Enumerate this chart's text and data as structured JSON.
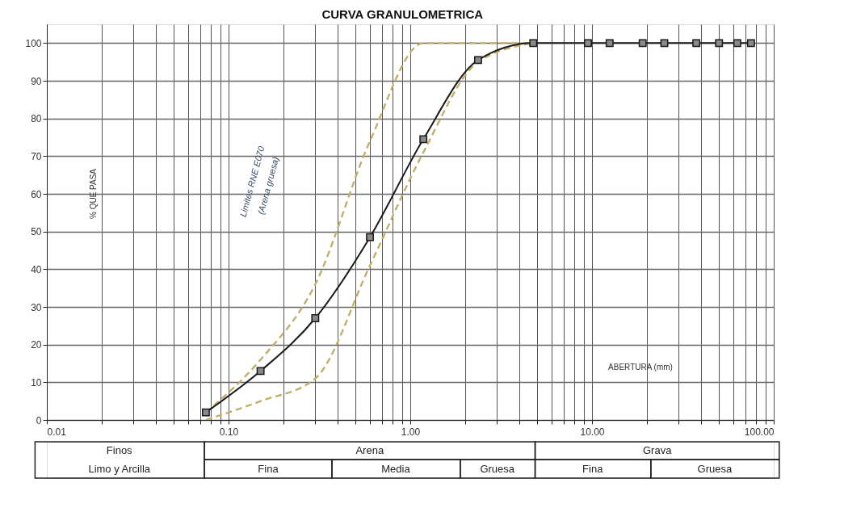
{
  "chart_data": {
    "type": "line",
    "title": "CURVA GRANULOMETRICA",
    "xlabel": "ABERTURA (mm)",
    "ylabel": "% QUE PASA",
    "log": "x",
    "grid": true,
    "xlim": [
      0.01,
      100
    ],
    "ylim": [
      0,
      105
    ],
    "xticks": [
      {
        "value": 0.01,
        "label": "0.01"
      },
      {
        "value": 0.02,
        "label": null
      },
      {
        "value": 0.03,
        "label": null
      },
      {
        "value": 0.04,
        "label": null
      },
      {
        "value": 0.05,
        "label": null
      },
      {
        "value": 0.06,
        "label": null
      },
      {
        "value": 0.07,
        "label": null
      },
      {
        "value": 0.08,
        "label": null
      },
      {
        "value": 0.09,
        "label": null
      },
      {
        "value": 0.1,
        "label": "0.10"
      },
      {
        "value": 0.2,
        "label": null
      },
      {
        "value": 0.3,
        "label": null
      },
      {
        "value": 0.4,
        "label": null
      },
      {
        "value": 0.5,
        "label": null
      },
      {
        "value": 0.6,
        "label": null
      },
      {
        "value": 0.7,
        "label": null
      },
      {
        "value": 0.8,
        "label": null
      },
      {
        "value": 0.9,
        "label": null
      },
      {
        "value": 1,
        "label": "1.00"
      },
      {
        "value": 2,
        "label": null
      },
      {
        "value": 3,
        "label": null
      },
      {
        "value": 4,
        "label": null
      },
      {
        "value": 5,
        "label": null
      },
      {
        "value": 6,
        "label": null
      },
      {
        "value": 7,
        "label": null
      },
      {
        "value": 8,
        "label": null
      },
      {
        "value": 9,
        "label": null
      },
      {
        "value": 10,
        "label": "10.00"
      },
      {
        "value": 20,
        "label": null
      },
      {
        "value": 30,
        "label": null
      },
      {
        "value": 40,
        "label": null
      },
      {
        "value": 50,
        "label": null
      },
      {
        "value": 60,
        "label": null
      },
      {
        "value": 70,
        "label": null
      },
      {
        "value": 80,
        "label": null
      },
      {
        "value": 90,
        "label": null
      },
      {
        "value": 100,
        "label": "100.00"
      }
    ],
    "yticks": [
      0,
      10,
      20,
      30,
      40,
      50,
      60,
      70,
      80,
      90,
      100
    ],
    "series": [
      {
        "color": "#c2b06a",
        "line_style": "dashed",
        "marker": "none",
        "x": [
          0.075,
          0.15,
          0.3,
          0.6,
          1.18,
          2.36,
          4.75
        ],
        "values": [
          2,
          16,
          36,
          74,
          100,
          100,
          100
        ]
      },
      {
        "color": "#c2b06a",
        "line_style": "dashed",
        "marker": "none",
        "x": [
          0.075,
          0.15,
          0.3,
          0.6,
          1.18,
          2.36,
          4.75
        ],
        "values": [
          0,
          5,
          11,
          41,
          71,
          95,
          100
        ]
      },
      {
        "color": "#1a1a1a",
        "line_style": "solid",
        "marker": "square",
        "x": [
          0.075,
          0.15,
          0.3,
          0.6,
          1.18,
          2.36,
          4.75,
          9.5,
          12.5,
          19,
          25,
          37.5,
          50,
          63,
          75
        ],
        "values": [
          2,
          13,
          27,
          48.5,
          74.5,
          95.5,
          100,
          100,
          100,
          100,
          100,
          100,
          100,
          100,
          100
        ]
      }
    ],
    "annotations": [
      "Limites RNE E070",
      "(Arena gruesa)",
      "Finos",
      "Limo y Arcilla",
      "Arena",
      "Fina",
      "Media",
      "Gruesa",
      "Grava",
      "Fina",
      "Gruesa"
    ]
  }
}
